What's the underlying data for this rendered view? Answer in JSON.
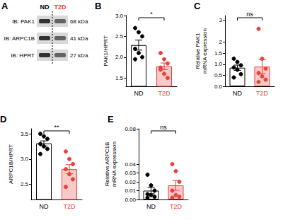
{
  "blot": {
    "panel": "A",
    "lanes": [
      "ND",
      "T2D"
    ],
    "colors": [
      "#000000",
      "#e8413c"
    ],
    "rows": [
      {
        "label": "IB: PAK1",
        "size": "68 kDa"
      },
      {
        "label": "IB: ARPC1B",
        "size": "41 kDa"
      },
      {
        "label": "IB: HPRT",
        "size": "27 kDa"
      }
    ]
  },
  "chart_data": [
    {
      "type": "bar",
      "panel": "B",
      "y_label": "PAK1/HPRT",
      "categories": [
        "ND",
        "T2D"
      ],
      "values": [
        2.29,
        1.78
      ],
      "errors": [
        0.12,
        0.08
      ],
      "points": [
        [
          2.7,
          2.6,
          2.5,
          2.2,
          2.1,
          2.0,
          1.95
        ],
        [
          2.1,
          1.95,
          1.85,
          1.75,
          1.6,
          1.5,
          1.7
        ]
      ],
      "colors": [
        "#000000",
        "#e8413c"
      ],
      "ylim": [
        1.3,
        3.0
      ],
      "yticks": [
        1.5,
        {
          "value": 2,
          "label": "2.0"
        },
        2.5,
        {
          "value": 3,
          "label": "3.0"
        }
      ],
      "significance": "*"
    },
    {
      "type": "bar",
      "panel": "C",
      "y_label": "Relative PAK1\nmRNA expression",
      "categories": [
        "ND",
        "T2D"
      ],
      "values": [
        0.84,
        0.89
      ],
      "errors": [
        0.12,
        0.32
      ],
      "points": [
        [
          1.25,
          1.1,
          0.95,
          0.85,
          0.75,
          0.55,
          0.4
        ],
        [
          2.6,
          1.25,
          0.8,
          0.6,
          0.45,
          0.3,
          0.2
        ]
      ],
      "colors": [
        "#000000",
        "#e8413c"
      ],
      "ylim": [
        0,
        3.2
      ],
      "yticks": [
        {
          "value": 0,
          "label": "0.0"
        },
        0.5,
        {
          "value": 1,
          "label": "1.0"
        },
        1.5,
        2,
        3
      ],
      "significance": "ns"
    },
    {
      "type": "bar",
      "panel": "D",
      "y_label": "ARPC1B/HPRT",
      "categories": [
        "ND",
        "T2D"
      ],
      "values": [
        3.31,
        2.8
      ],
      "errors": [
        0.05,
        0.09
      ],
      "points": [
        [
          3.5,
          3.45,
          3.4,
          3.3,
          3.25,
          3.2,
          3.1
        ],
        [
          3.15,
          3.0,
          2.9,
          2.8,
          2.7,
          2.6,
          2.45
        ]
      ],
      "colors": [
        "#000000",
        "#e8413c"
      ],
      "ylim": [
        2.2,
        3.6
      ],
      "yticks": [
        2.5,
        {
          "value": 3,
          "label": "3.0"
        },
        3.5
      ],
      "significance": "**"
    },
    {
      "type": "bar",
      "panel": "E",
      "y_label": "Relative ARPC1B\nmRNA expression",
      "categories": [
        "ND",
        "T2D"
      ],
      "values": [
        0.01,
        0.016
      ],
      "errors": [
        0.0035,
        0.0055
      ],
      "points": [
        [
          0.028,
          0.016,
          0.01,
          0.006,
          0.005,
          0.003,
          0.002
        ],
        [
          0.04,
          0.032,
          0.02,
          0.01,
          0.005,
          0.003,
          0.002
        ]
      ],
      "colors": [
        "#000000",
        "#e8413c"
      ],
      "ylim": [
        0,
        0.08
      ],
      "yticks": [
        {
          "value": 0,
          "label": "0.00"
        },
        0.01,
        0.02,
        0.03,
        0.04,
        0.08
      ],
      "significance": "ns"
    }
  ]
}
